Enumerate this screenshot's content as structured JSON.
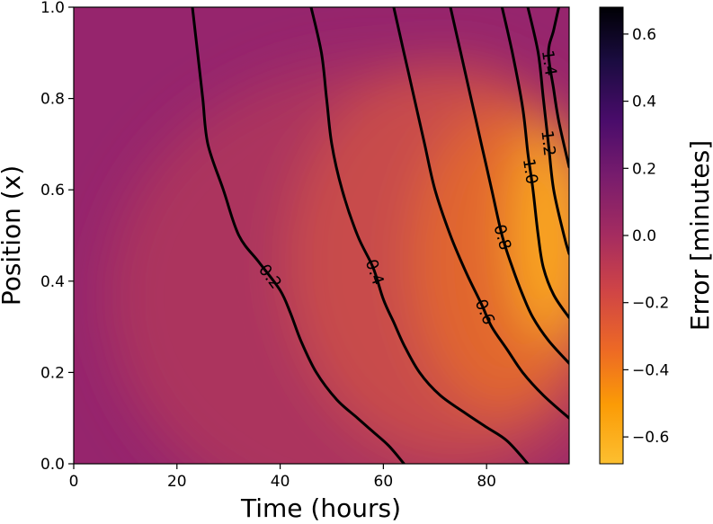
{
  "chart_data": {
    "type": "heatmap",
    "title": "",
    "xlabel": "Time (hours)",
    "ylabel": "Position (x)",
    "xlim": [
      0,
      96
    ],
    "ylim": [
      0.0,
      1.0
    ],
    "xticks": [
      "0",
      "20",
      "40",
      "60",
      "80"
    ],
    "yticks": [
      "0.0",
      "0.2",
      "0.4",
      "0.6",
      "0.8",
      "1.0"
    ],
    "colorbar": {
      "label": "Error [minutes]",
      "colormap": "inferno (reversed)",
      "range": [
        -0.68,
        0.68
      ],
      "ticks": [
        "0.6",
        "0.4",
        "0.2",
        "0.0",
        "−0.2",
        "−0.4",
        "−0.6"
      ]
    },
    "contours": [
      {
        "level": 0.2,
        "label": "0.2",
        "points": [
          [
            23,
            1.0
          ],
          [
            24,
            0.9
          ],
          [
            25,
            0.8
          ],
          [
            26,
            0.7
          ],
          [
            29,
            0.6
          ],
          [
            32,
            0.5
          ],
          [
            36,
            0.44
          ],
          [
            40,
            0.38
          ],
          [
            42,
            0.33
          ],
          [
            44,
            0.27
          ],
          [
            47,
            0.2
          ],
          [
            51,
            0.14
          ],
          [
            55,
            0.1
          ],
          [
            58,
            0.07
          ],
          [
            61,
            0.04
          ],
          [
            64,
            0.0
          ]
        ]
      },
      {
        "level": 0.4,
        "label": "0.4",
        "points": [
          [
            46,
            1.0
          ],
          [
            48,
            0.9
          ],
          [
            49,
            0.8
          ],
          [
            50,
            0.7
          ],
          [
            52,
            0.6
          ],
          [
            55,
            0.5
          ],
          [
            58,
            0.43
          ],
          [
            60,
            0.36
          ],
          [
            62,
            0.31
          ],
          [
            64,
            0.26
          ],
          [
            67,
            0.2
          ],
          [
            71,
            0.15
          ],
          [
            76,
            0.11
          ],
          [
            80,
            0.08
          ],
          [
            84,
            0.05
          ],
          [
            88,
            0.0
          ]
        ]
      },
      {
        "level": 0.6,
        "label": "0.6",
        "points": [
          [
            62,
            1.0
          ],
          [
            64,
            0.9
          ],
          [
            66,
            0.8
          ],
          [
            68,
            0.7
          ],
          [
            70,
            0.6
          ],
          [
            73,
            0.5
          ],
          [
            76,
            0.42
          ],
          [
            79,
            0.35
          ],
          [
            81,
            0.3
          ],
          [
            84,
            0.25
          ],
          [
            87,
            0.2
          ],
          [
            91,
            0.15
          ],
          [
            96,
            0.1
          ]
        ]
      },
      {
        "level": 0.8,
        "label": "0.8",
        "points": [
          [
            73,
            1.0
          ],
          [
            75,
            0.9
          ],
          [
            77,
            0.8
          ],
          [
            79,
            0.7
          ],
          [
            81,
            0.6
          ],
          [
            83,
            0.5
          ],
          [
            85,
            0.43
          ],
          [
            87,
            0.37
          ],
          [
            89,
            0.32
          ],
          [
            92,
            0.27
          ],
          [
            96,
            0.22
          ]
        ]
      },
      {
        "level": 1.0,
        "label": "1.0",
        "points": [
          [
            83,
            1.0
          ],
          [
            85,
            0.9
          ],
          [
            87,
            0.78
          ],
          [
            88,
            0.68
          ],
          [
            89,
            0.6
          ],
          [
            90,
            0.5
          ],
          [
            91,
            0.43
          ],
          [
            93,
            0.37
          ],
          [
            96,
            0.32
          ]
        ]
      },
      {
        "level": 1.2,
        "label": "1.2",
        "points": [
          [
            88,
            1.0
          ],
          [
            90,
            0.9
          ],
          [
            91,
            0.8
          ],
          [
            92,
            0.7
          ],
          [
            93,
            0.6
          ],
          [
            95,
            0.5
          ],
          [
            96,
            0.46
          ]
        ]
      },
      {
        "level": 1.4,
        "label": "1.4",
        "points": [
          [
            94,
            1.0
          ],
          [
            93,
            0.95
          ],
          [
            92,
            0.9
          ],
          [
            93,
            0.82
          ],
          [
            94,
            0.75
          ],
          [
            96,
            0.65
          ]
        ]
      }
    ]
  }
}
